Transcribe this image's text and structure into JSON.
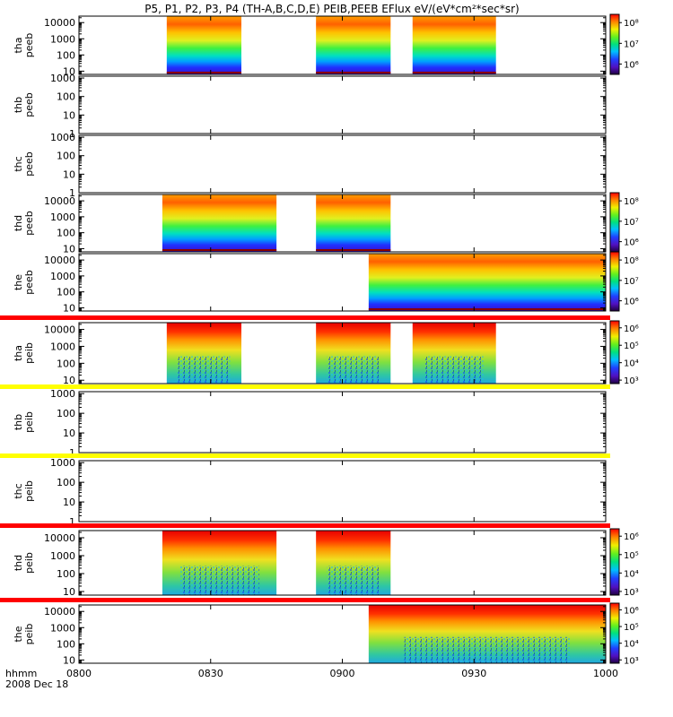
{
  "title": "P5, P1, P2, P3, P4 (TH-A,B,C,D,E) PEIB,PEEB EFlux eV/(eV*cm²*sec*sr)",
  "footer": {
    "time_label": "hhmm",
    "date_label": "2008 Dec 18"
  },
  "colors": {
    "bar_red": "#ff0000",
    "bar_yellow": "#ffff00",
    "background": "#ffffff"
  },
  "chart_data": {
    "type": "heatmap",
    "xlabel": "hhmm",
    "x_range": [
      "08:00",
      "10:00"
    ],
    "x_ticks": [
      "0800",
      "0830",
      "0900",
      "0930",
      "1000"
    ],
    "panels": [
      {
        "name": "tha_peeb",
        "ylabel": [
          "tha",
          "peeb"
        ],
        "y_ticks": [
          "10",
          "100",
          "1000",
          "10000"
        ],
        "y_tick_values": [
          10,
          100,
          1000,
          10000
        ],
        "ylim_log10": [
          0.8,
          4.4
        ],
        "intervals": [
          [
            "08:20",
            "08:37"
          ],
          [
            "08:54",
            "09:11"
          ],
          [
            "09:16",
            "09:35"
          ]
        ],
        "spectrum": "electron",
        "colorbar": {
          "labels": [
            "10⁸",
            "10⁷",
            "10⁶"
          ],
          "values": [
            8,
            7,
            6
          ],
          "range_log10": [
            5.5,
            8.4
          ]
        }
      },
      {
        "name": "thb_peeb",
        "ylabel": [
          "thb",
          "peeb"
        ],
        "y_ticks": [
          "1",
          "10",
          "100",
          "1000"
        ],
        "y_tick_values": [
          1,
          10,
          100,
          1000
        ],
        "ylim_log10": [
          0,
          3.1
        ],
        "intervals": [],
        "spectrum": "electron",
        "colorbar": null
      },
      {
        "name": "thc_peeb",
        "ylabel": [
          "thc",
          "peeb"
        ],
        "y_ticks": [
          "1",
          "10",
          "100",
          "1000"
        ],
        "y_tick_values": [
          1,
          10,
          100,
          1000
        ],
        "ylim_log10": [
          0,
          3.1
        ],
        "intervals": [],
        "spectrum": "electron",
        "colorbar": null
      },
      {
        "name": "thd_peeb",
        "ylabel": [
          "thd",
          "peeb"
        ],
        "y_ticks": [
          "10",
          "100",
          "1000",
          "10000"
        ],
        "y_tick_values": [
          10,
          100,
          1000,
          10000
        ],
        "ylim_log10": [
          0.8,
          4.4
        ],
        "intervals": [
          [
            "08:19",
            "08:45"
          ],
          [
            "08:54",
            "09:11"
          ]
        ],
        "spectrum": "electron",
        "colorbar": {
          "labels": [
            "10⁸",
            "10⁷",
            "10⁶"
          ],
          "values": [
            8,
            7,
            6
          ],
          "range_log10": [
            5.5,
            8.4
          ]
        }
      },
      {
        "name": "the_peeb",
        "ylabel": [
          "the",
          "peeb"
        ],
        "y_ticks": [
          "10",
          "100",
          "1000",
          "10000"
        ],
        "y_tick_values": [
          10,
          100,
          1000,
          10000
        ],
        "ylim_log10": [
          0.8,
          4.4
        ],
        "intervals": [
          [
            "09:06",
            "10:00"
          ]
        ],
        "spectrum": "electron",
        "colorbar": {
          "labels": [
            "10⁸",
            "10⁷",
            "10⁶"
          ],
          "values": [
            8,
            7,
            6
          ],
          "range_log10": [
            5.5,
            8.4
          ]
        }
      },
      {
        "name": "tha_peib",
        "ylabel": [
          "tha",
          "peib"
        ],
        "y_ticks": [
          "10",
          "100",
          "1000",
          "10000"
        ],
        "y_tick_values": [
          10,
          100,
          1000,
          10000
        ],
        "ylim_log10": [
          0.8,
          4.4
        ],
        "intervals": [
          [
            "08:20",
            "08:37"
          ],
          [
            "08:54",
            "09:11"
          ],
          [
            "09:16",
            "09:35"
          ]
        ],
        "spectrum": "ion",
        "top_bar": "red",
        "colorbar": {
          "labels": [
            "10⁶",
            "10⁵",
            "10⁴",
            "10³"
          ],
          "values": [
            6,
            5,
            4,
            3
          ],
          "range_log10": [
            2.8,
            6.4
          ]
        }
      },
      {
        "name": "thb_peib",
        "ylabel": [
          "thb",
          "peib"
        ],
        "y_ticks": [
          "1",
          "10",
          "100",
          "1000"
        ],
        "y_tick_values": [
          1,
          10,
          100,
          1000
        ],
        "ylim_log10": [
          0,
          3.1
        ],
        "intervals": [],
        "spectrum": "ion",
        "top_bar": "yellow",
        "colorbar": null
      },
      {
        "name": "thc_peib",
        "ylabel": [
          "thc",
          "peib"
        ],
        "y_ticks": [
          "1",
          "10",
          "100",
          "1000"
        ],
        "y_tick_values": [
          1,
          10,
          100,
          1000
        ],
        "ylim_log10": [
          0,
          3.1
        ],
        "intervals": [],
        "spectrum": "ion",
        "top_bar": "yellow",
        "colorbar": null
      },
      {
        "name": "thd_peib",
        "ylabel": [
          "thd",
          "peib"
        ],
        "y_ticks": [
          "10",
          "100",
          "1000",
          "10000"
        ],
        "y_tick_values": [
          10,
          100,
          1000,
          10000
        ],
        "ylim_log10": [
          0.8,
          4.4
        ],
        "intervals": [
          [
            "08:19",
            "08:45"
          ],
          [
            "08:54",
            "09:11"
          ]
        ],
        "spectrum": "ion",
        "top_bar": "red",
        "colorbar": {
          "labels": [
            "10⁶",
            "10⁵",
            "10⁴",
            "10³"
          ],
          "values": [
            6,
            5,
            4,
            3
          ],
          "range_log10": [
            2.8,
            6.4
          ]
        }
      },
      {
        "name": "the_peib",
        "ylabel": [
          "the",
          "peib"
        ],
        "y_ticks": [
          "10",
          "100",
          "1000",
          "10000"
        ],
        "y_tick_values": [
          10,
          100,
          1000,
          10000
        ],
        "ylim_log10": [
          0.8,
          4.4
        ],
        "intervals": [
          [
            "09:06",
            "10:00"
          ]
        ],
        "spectrum": "ion",
        "top_bar": "red",
        "colorbar": {
          "labels": [
            "10⁶",
            "10⁵",
            "10⁴",
            "10³"
          ],
          "values": [
            6,
            5,
            4,
            3
          ],
          "range_log10": [
            2.8,
            6.4
          ]
        }
      }
    ]
  }
}
